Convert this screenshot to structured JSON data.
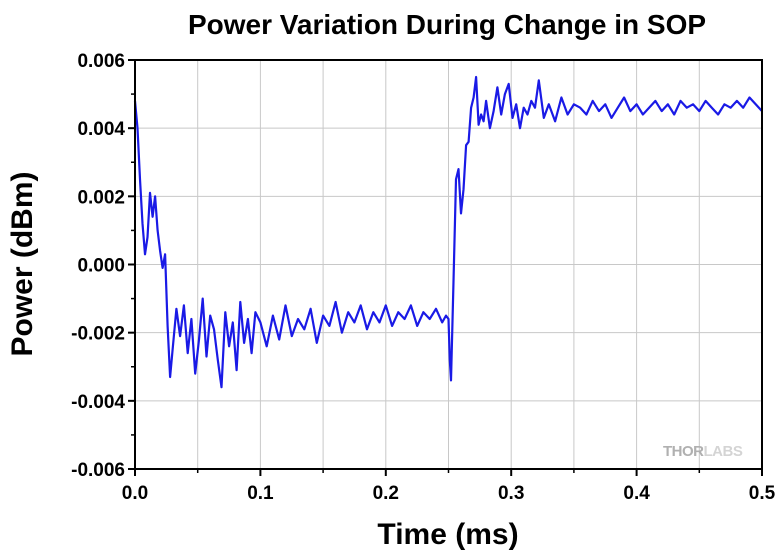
{
  "chart_data": {
    "type": "line",
    "title": "Power Variation During Change in SOP",
    "xlabel": "Time (ms)",
    "ylabel": "Power (dBm)",
    "xlim": [
      0.0,
      0.5
    ],
    "ylim": [
      -0.006,
      0.006
    ],
    "x_ticks": [
      "0.0",
      "0.1",
      "0.2",
      "0.3",
      "0.4",
      "0.5"
    ],
    "y_ticks": [
      "-0.006",
      "-0.004",
      "-0.002",
      "0.000",
      "0.002",
      "0.004",
      "0.006"
    ],
    "grid": true,
    "series_color": "#1a1ae6",
    "series": [
      {
        "x": [
          0.0,
          0.002,
          0.004,
          0.006,
          0.008,
          0.01,
          0.012,
          0.014,
          0.016,
          0.018,
          0.02,
          0.022,
          0.024,
          0.026,
          0.028,
          0.03,
          0.033,
          0.036,
          0.039,
          0.042,
          0.045,
          0.048,
          0.051,
          0.054,
          0.057,
          0.06,
          0.063,
          0.066,
          0.069,
          0.072,
          0.075,
          0.078,
          0.081,
          0.084,
          0.087,
          0.09,
          0.093,
          0.096,
          0.1,
          0.105,
          0.11,
          0.115,
          0.12,
          0.125,
          0.13,
          0.135,
          0.14,
          0.145,
          0.15,
          0.155,
          0.16,
          0.165,
          0.17,
          0.175,
          0.18,
          0.185,
          0.19,
          0.195,
          0.2,
          0.205,
          0.21,
          0.215,
          0.22,
          0.225,
          0.23,
          0.235,
          0.24,
          0.245,
          0.248,
          0.25,
          0.251,
          0.252,
          0.254,
          0.256,
          0.258,
          0.26,
          0.262,
          0.264,
          0.266,
          0.268,
          0.27,
          0.272,
          0.274,
          0.276,
          0.278,
          0.28,
          0.283,
          0.286,
          0.289,
          0.292,
          0.295,
          0.298,
          0.301,
          0.304,
          0.307,
          0.31,
          0.313,
          0.316,
          0.319,
          0.322,
          0.326,
          0.33,
          0.335,
          0.34,
          0.345,
          0.35,
          0.355,
          0.36,
          0.365,
          0.37,
          0.375,
          0.38,
          0.385,
          0.39,
          0.395,
          0.4,
          0.405,
          0.41,
          0.415,
          0.42,
          0.425,
          0.43,
          0.435,
          0.44,
          0.445,
          0.45,
          0.455,
          0.46,
          0.465,
          0.47,
          0.475,
          0.48,
          0.485,
          0.49,
          0.495,
          0.5
        ],
        "y": [
          0.0048,
          0.004,
          0.0025,
          0.0012,
          0.0003,
          0.0008,
          0.0021,
          0.0014,
          0.002,
          0.001,
          0.0004,
          -0.0001,
          0.0003,
          -0.0018,
          -0.0033,
          -0.0025,
          -0.0013,
          -0.0021,
          -0.0012,
          -0.0026,
          -0.0016,
          -0.0032,
          -0.0022,
          -0.001,
          -0.0027,
          -0.0015,
          -0.0019,
          -0.0028,
          -0.0036,
          -0.0014,
          -0.0024,
          -0.0017,
          -0.0031,
          -0.0011,
          -0.0023,
          -0.0016,
          -0.0026,
          -0.0014,
          -0.0017,
          -0.0024,
          -0.0015,
          -0.0022,
          -0.0012,
          -0.0021,
          -0.0016,
          -0.0019,
          -0.0013,
          -0.0023,
          -0.0015,
          -0.0018,
          -0.0011,
          -0.002,
          -0.0014,
          -0.0017,
          -0.0012,
          -0.0019,
          -0.0014,
          -0.0017,
          -0.0012,
          -0.0018,
          -0.0014,
          -0.0016,
          -0.0012,
          -0.0018,
          -0.0014,
          -0.0016,
          -0.0013,
          -0.0017,
          -0.0015,
          -0.0016,
          -0.0028,
          -0.0034,
          -0.0005,
          0.0025,
          0.0028,
          0.0015,
          0.0022,
          0.0035,
          0.0036,
          0.0046,
          0.0049,
          0.0055,
          0.0041,
          0.0044,
          0.0042,
          0.0048,
          0.004,
          0.0045,
          0.0052,
          0.0044,
          0.005,
          0.0053,
          0.0043,
          0.0047,
          0.004,
          0.0046,
          0.0044,
          0.0048,
          0.0046,
          0.0054,
          0.0043,
          0.0047,
          0.0042,
          0.0049,
          0.0044,
          0.0047,
          0.0046,
          0.0044,
          0.0048,
          0.0045,
          0.0047,
          0.0043,
          0.0046,
          0.0049,
          0.0045,
          0.0047,
          0.0044,
          0.0046,
          0.0048,
          0.0045,
          0.0047,
          0.0044,
          0.0048,
          0.0046,
          0.0047,
          0.0045,
          0.0048,
          0.0046,
          0.0044,
          0.0047,
          0.0046,
          0.0048,
          0.0046,
          0.0049,
          0.0047,
          0.0045
        ]
      }
    ]
  },
  "watermark": {
    "text_a": "THOR",
    "text_b": "LABS"
  }
}
